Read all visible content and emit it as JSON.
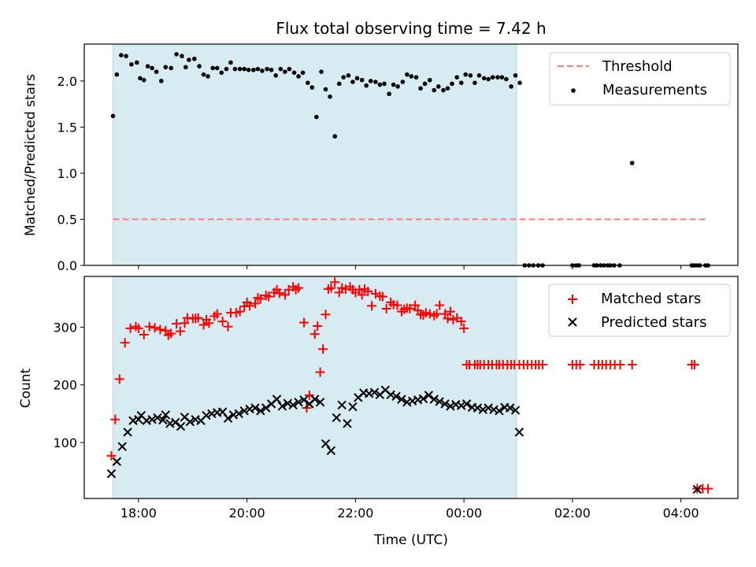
{
  "chart_data": [
    {
      "panel": "top",
      "type": "scatter",
      "title": "Flux total observing time = 7.42 h",
      "xlabel": "",
      "ylabel": "Matched/Predicted stars",
      "ylim": [
        0,
        2.4
      ],
      "yticks": [
        0.0,
        0.5,
        1.0,
        1.5,
        2.0
      ],
      "ytick_labels": [
        "0.0",
        "0.5",
        "1.0",
        "1.5",
        "2.0"
      ],
      "xlim_hours": [
        17.0,
        29.05
      ],
      "shaded_span_hours": [
        17.53,
        24.97
      ],
      "shade_color": "#add8e6",
      "legend_position": "top-right",
      "threshold": {
        "name": "Threshold",
        "value": 0.5,
        "x_range_hours": [
          17.53,
          28.5
        ],
        "color": "#ff7f7f"
      },
      "series": [
        {
          "name": "Measurements",
          "marker": "dot",
          "color": "#000000",
          "x": [
            17.53,
            17.6,
            17.68,
            17.77,
            17.87,
            17.97,
            18.03,
            18.1,
            18.17,
            18.25,
            18.33,
            18.42,
            18.5,
            18.6,
            18.7,
            18.8,
            18.87,
            18.93,
            19.03,
            19.12,
            19.2,
            19.28,
            19.37,
            19.45,
            19.53,
            19.62,
            19.7,
            19.78,
            19.87,
            19.95,
            20.03,
            20.12,
            20.2,
            20.28,
            20.37,
            20.45,
            20.53,
            20.62,
            20.7,
            20.78,
            20.87,
            20.95,
            21.03,
            21.12,
            21.2,
            21.28,
            21.37,
            21.45,
            21.53,
            21.62,
            21.7,
            21.78,
            21.87,
            21.95,
            22.03,
            22.12,
            22.2,
            22.28,
            22.37,
            22.45,
            22.53,
            22.62,
            22.7,
            22.78,
            22.87,
            22.95,
            23.03,
            23.12,
            23.2,
            23.28,
            23.37,
            23.45,
            23.53,
            23.62,
            23.7,
            23.78,
            23.87,
            23.95,
            24.03,
            24.12,
            24.2,
            24.28,
            24.37,
            24.45,
            24.53,
            24.62,
            24.7,
            24.78,
            24.87,
            24.95,
            25.03,
            25.12,
            25.2,
            25.28,
            25.37,
            25.45,
            26.0,
            26.07,
            26.12,
            26.4,
            26.45,
            26.52,
            26.58,
            26.65,
            26.7,
            26.77,
            26.87,
            27.1,
            28.2,
            28.25,
            28.3,
            28.35,
            28.45,
            28.5
          ],
          "y": [
            1.62,
            2.07,
            2.28,
            2.27,
            2.18,
            2.2,
            2.03,
            2.01,
            2.16,
            2.14,
            2.1,
            2.0,
            2.15,
            2.14,
            2.29,
            2.27,
            2.15,
            2.23,
            2.24,
            2.16,
            2.07,
            2.05,
            2.14,
            2.14,
            2.09,
            2.13,
            2.2,
            2.13,
            2.13,
            2.13,
            2.12,
            2.12,
            2.13,
            2.11,
            2.13,
            2.12,
            2.06,
            2.13,
            2.1,
            2.13,
            2.09,
            2.05,
            2.09,
            1.98,
            1.93,
            1.61,
            2.1,
            1.91,
            1.83,
            1.4,
            1.97,
            2.04,
            2.06,
            1.99,
            2.03,
            2.01,
            1.95,
            2.0,
            1.99,
            1.96,
            1.97,
            1.86,
            1.96,
            1.94,
            1.99,
            2.07,
            2.05,
            2.04,
            1.92,
            1.97,
            2.01,
            1.9,
            1.94,
            1.9,
            1.92,
            1.97,
            2.04,
            1.98,
            2.07,
            2.06,
            1.98,
            2.06,
            2.03,
            2.02,
            2.04,
            2.04,
            2.04,
            2.02,
            1.94,
            2.06,
            1.98,
            0.0,
            0.0,
            0.0,
            0.0,
            0.0,
            0.0,
            0.0,
            0.0,
            0.0,
            0.0,
            0.0,
            0.0,
            0.0,
            0.0,
            0.0,
            0.0,
            1.11,
            0.0,
            0.0,
            0.0,
            0.0,
            0.0,
            0.0
          ]
        }
      ]
    },
    {
      "panel": "bottom",
      "type": "scatter",
      "title": "",
      "xlabel": "Time (UTC)",
      "ylabel": "Count",
      "ylim": [
        3,
        388
      ],
      "yticks": [
        100,
        200,
        300
      ],
      "ytick_labels": [
        "100",
        "200",
        "300"
      ],
      "xlim_hours": [
        17.0,
        29.05
      ],
      "xticks_hours": [
        18,
        20,
        22,
        24,
        26,
        28
      ],
      "xtick_labels": [
        "18:00",
        "20:00",
        "22:00",
        "00:00",
        "02:00",
        "04:00"
      ],
      "shaded_span_hours": [
        17.53,
        24.97
      ],
      "legend_position": "top-right",
      "series": [
        {
          "name": "Matched stars",
          "marker": "plus",
          "color": "#ff0000",
          "x": [
            17.5,
            17.57,
            17.65,
            17.75,
            17.85,
            17.95,
            18.0,
            18.1,
            18.2,
            18.3,
            18.4,
            18.5,
            18.55,
            18.6,
            18.7,
            18.77,
            18.85,
            18.9,
            19.0,
            19.05,
            19.1,
            19.2,
            19.25,
            19.3,
            19.4,
            19.45,
            19.55,
            19.65,
            19.7,
            19.8,
            19.87,
            19.95,
            20.0,
            20.05,
            20.15,
            20.2,
            20.25,
            20.35,
            20.4,
            20.5,
            20.55,
            20.6,
            20.7,
            20.77,
            20.85,
            20.9,
            20.95,
            21.05,
            21.1,
            21.15,
            21.25,
            21.3,
            21.35,
            21.4,
            21.45,
            21.5,
            21.55,
            21.62,
            21.7,
            21.75,
            21.82,
            21.9,
            21.95,
            22.0,
            22.07,
            22.12,
            22.17,
            22.23,
            22.3,
            22.37,
            22.45,
            22.5,
            22.57,
            22.65,
            22.7,
            22.77,
            22.85,
            22.9,
            22.95,
            23.0,
            23.1,
            23.15,
            23.2,
            23.25,
            23.3,
            23.37,
            23.45,
            23.5,
            23.55,
            23.65,
            23.7,
            23.75,
            23.8,
            23.87,
            23.95,
            24.0,
            24.05,
            24.1,
            24.2,
            24.25,
            24.3,
            24.37,
            24.45,
            24.52,
            24.6,
            24.65,
            24.72,
            24.8,
            24.87,
            24.93,
            25.02,
            25.1,
            25.17,
            25.25,
            25.32,
            25.38,
            25.45,
            26.0,
            26.07,
            26.14,
            26.4,
            26.48,
            26.55,
            26.62,
            26.7,
            26.78,
            26.88,
            27.1,
            28.2,
            28.25,
            28.3,
            28.4,
            28.5
          ],
          "y": [
            77,
            140,
            210,
            273,
            298,
            301,
            298,
            287,
            301,
            299,
            296,
            294,
            286,
            289,
            306,
            293,
            307,
            316,
            315,
            315,
            316,
            304,
            313,
            307,
            319,
            323,
            310,
            301,
            325,
            325,
            327,
            336,
            343,
            337,
            341,
            351,
            349,
            355,
            353,
            360,
            365,
            359,
            356,
            365,
            370,
            365,
            368,
            308,
            160,
            182,
            288,
            302,
            222,
            262,
            322,
            366,
            368,
            378,
            360,
            368,
            366,
            370,
            365,
            360,
            365,
            356,
            366,
            362,
            337,
            358,
            354,
            353,
            332,
            343,
            339,
            338,
            327,
            331,
            333,
            332,
            338,
            329,
            322,
            321,
            325,
            323,
            320,
            323,
            338,
            323,
            315,
            327,
            313,
            316,
            310,
            298,
            235,
            235,
            235,
            235,
            235,
            235,
            235,
            235,
            235,
            235,
            235,
            235,
            235,
            235,
            235,
            235,
            235,
            235,
            235,
            235,
            235,
            235,
            235,
            235,
            235,
            235,
            235,
            235,
            235,
            235,
            235,
            235,
            235,
            235,
            20,
            20,
            20
          ],
          "note": "x/y arrays listed to preserve the visible pattern"
        },
        {
          "name": "Predicted stars",
          "marker": "x",
          "color": "#000000",
          "x": [
            17.5,
            17.6,
            17.7,
            17.8,
            17.9,
            18.0,
            18.05,
            18.15,
            18.25,
            18.35,
            18.45,
            18.5,
            18.58,
            18.68,
            18.78,
            18.85,
            18.95,
            19.05,
            19.15,
            19.25,
            19.35,
            19.45,
            19.55,
            19.65,
            19.75,
            19.85,
            19.95,
            20.05,
            20.15,
            20.25,
            20.35,
            20.45,
            20.55,
            20.65,
            20.75,
            20.85,
            20.95,
            21.05,
            21.15,
            21.25,
            21.35,
            21.45,
            21.55,
            21.65,
            21.75,
            21.85,
            21.95,
            22.05,
            22.15,
            22.25,
            22.35,
            22.45,
            22.55,
            22.65,
            22.75,
            22.85,
            22.95,
            23.05,
            23.15,
            23.25,
            23.35,
            23.45,
            23.55,
            23.65,
            23.75,
            23.85,
            23.95,
            24.05,
            24.15,
            24.25,
            24.35,
            24.45,
            24.55,
            24.65,
            24.75,
            24.85,
            24.95,
            25.02,
            28.3
          ],
          "y": [
            46,
            67,
            93,
            118,
            138,
            140,
            147,
            138,
            140,
            143,
            139,
            148,
            133,
            135,
            128,
            144,
            136,
            140,
            138,
            147,
            150,
            152,
            153,
            142,
            148,
            150,
            155,
            158,
            160,
            155,
            160,
            167,
            175,
            163,
            168,
            165,
            170,
            174,
            167,
            175,
            170,
            98,
            86,
            143,
            165,
            133,
            162,
            178,
            186,
            185,
            187,
            183,
            191,
            183,
            180,
            175,
            170,
            172,
            174,
            176,
            182,
            175,
            171,
            167,
            163,
            166,
            164,
            167,
            161,
            160,
            157,
            160,
            157,
            155,
            161,
            160,
            156,
            118,
            19
          ]
        }
      ]
    }
  ]
}
